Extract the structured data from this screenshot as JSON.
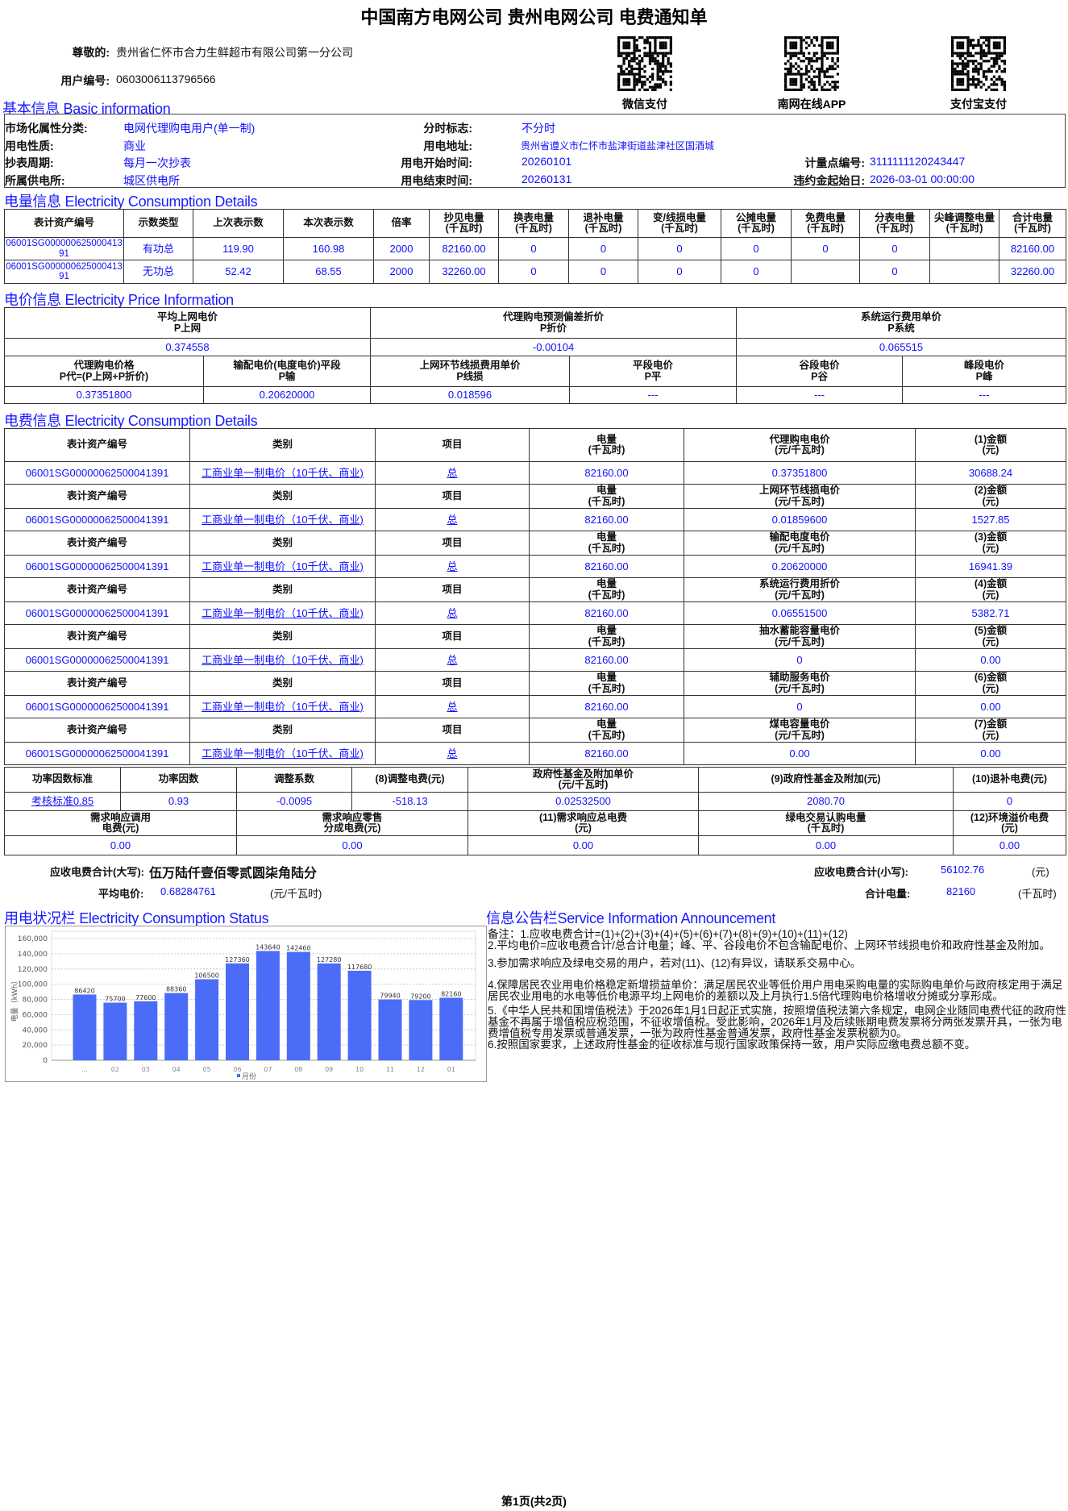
{
  "header": {
    "title": "中国南方电网公司 贵州电网公司 电费通知单",
    "greeting_label": "尊敬的:",
    "customer_name": "贵州省仁怀市合力生鲜超市有限公司第一分公司",
    "user_no_label": "用户编号:",
    "user_no": "0603006113796566",
    "qr_codes": [
      {
        "label": "微信支付",
        "icon": "qr-code-icon"
      },
      {
        "label": "南网在线APP",
        "icon": "qr-code-icon"
      },
      {
        "label": "支付宝支付",
        "icon": "qr-code-icon"
      }
    ]
  },
  "basic": {
    "title": "基本信息 Basic information",
    "market_label": "市场化属性分类:",
    "market": "电网代理购电用户(单一制)",
    "tou_label": "分时标志:",
    "tou": "不分时",
    "nature_label": "用电性质:",
    "nature": "商业",
    "address_label": "用电地址:",
    "address": "贵州省遵义市仁怀市盐津街道盐津社区国酒城",
    "cycle_label": "抄表周期:",
    "cycle": "每月一次抄表",
    "start_label": "用电开始时间:",
    "start": "20260101",
    "point_label": "计量点编号:",
    "point": "3111111120243447",
    "station_label": "所属供电所:",
    "station": "城区供电所",
    "end_label": "用电结束时间:",
    "end": "20260131",
    "penalty_label": "违约金起始日:",
    "penalty": "2026-03-01 00:00:00"
  },
  "consumption": {
    "title": "电量信息 Electricity Consumption Details",
    "headers": [
      "表计资产编号",
      "示数类型",
      "上次表示数",
      "本次表示数",
      "倍率",
      "抄见电量\n(千瓦时)",
      "换表电量\n(千瓦时)",
      "退补电量\n(千瓦时)",
      "变/线损电量\n(千瓦时)",
      "公摊电量\n(千瓦时)",
      "免费电量\n(千瓦时)",
      "分表电量\n(千瓦时)",
      "尖峰调整电量\n(千瓦时)",
      "合计电量\n(千瓦时)"
    ],
    "rows": [
      [
        "06001SG00000062500041391",
        "有功总",
        "119.90",
        "160.98",
        "2000",
        "82160.00",
        "0",
        "0",
        "0",
        "0",
        "0",
        "0",
        "",
        "82160.00"
      ],
      [
        "06001SG00000062500041391",
        "无功总",
        "52.42",
        "68.55",
        "2000",
        "32260.00",
        "0",
        "0",
        "0",
        "0",
        "",
        "0",
        "",
        "32260.00"
      ]
    ]
  },
  "price": {
    "title": "电价信息 Electricity Price Information",
    "row1_headers": [
      "平均上网电价\nP上网",
      "代理购电预测偏差折价\nP折价",
      "系统运行费用单价\nP系统"
    ],
    "row1_values": [
      "0.374558",
      "-0.00104",
      "0.065515"
    ],
    "row2_headers": [
      "代理购电价格\nP代=(P上网+P折价)",
      "输配电价(电度电价)平段\nP输",
      "上网环节线损费用单价\nP线损",
      "平段电价\nP平",
      "谷段电价\nP谷",
      "峰段电价\nP峰"
    ],
    "row2_values": [
      "0.37351800",
      "0.20620000",
      "0.018596",
      "---",
      "---",
      "---"
    ]
  },
  "fees": {
    "title": "电费信息 Electricity Consumption Details",
    "blocks": [
      {
        "headers": [
          "表计资产编号",
          "类别",
          "项目",
          "电量\n(千瓦时)",
          "代理购电电价\n(元/千瓦时)",
          "(1)金额\n(元)"
        ],
        "values": [
          "06001SG00000062500041391",
          "工商业单一制电价（10千伏、商业)",
          "总",
          "82160.00",
          "0.37351800",
          "30688.24"
        ]
      },
      {
        "headers": [
          "表计资产编号",
          "类别",
          "项目",
          "电量\n(千瓦时)",
          "上网环节线损电价\n(元/千瓦时)",
          "(2)金额\n(元)"
        ],
        "values": [
          "06001SG00000062500041391",
          "工商业单一制电价（10千伏、商业)",
          "总",
          "82160.00",
          "0.01859600",
          "1527.85"
        ]
      },
      {
        "headers": [
          "表计资产编号",
          "类别",
          "项目",
          "电量\n(千瓦时)",
          "输配电度电价\n(元/千瓦时)",
          "(3)金额\n(元)"
        ],
        "values": [
          "06001SG00000062500041391",
          "工商业单一制电价（10千伏、商业)",
          "总",
          "82160.00",
          "0.20620000",
          "16941.39"
        ]
      },
      {
        "headers": [
          "表计资产编号",
          "类别",
          "项目",
          "电量\n(千瓦时)",
          "系统运行费用折价\n(元/千瓦时)",
          "(4)金额\n(元)"
        ],
        "values": [
          "06001SG00000062500041391",
          "工商业单一制电价（10千伏、商业)",
          "总",
          "82160.00",
          "0.06551500",
          "5382.71"
        ]
      },
      {
        "headers": [
          "表计资产编号",
          "类别",
          "项目",
          "电量\n(千瓦时)",
          "抽水蓄能容量电价\n(元/千瓦时)",
          "(5)金额\n(元)"
        ],
        "values": [
          "06001SG00000062500041391",
          "工商业单一制电价（10千伏、商业)",
          "总",
          "82160.00",
          "0",
          "0.00"
        ]
      },
      {
        "headers": [
          "表计资产编号",
          "类别",
          "项目",
          "电量\n(千瓦时)",
          "辅助服务电价\n(元/千瓦时)",
          "(6)金额\n(元)"
        ],
        "values": [
          "06001SG00000062500041391",
          "工商业单一制电价（10千伏、商业)",
          "总",
          "82160.00",
          "0",
          "0.00"
        ]
      },
      {
        "headers": [
          "表计资产编号",
          "类别",
          "项目",
          "电量\n(千瓦时)",
          "煤电容量电价\n(元/千瓦时)",
          "(7)金额\n(元)"
        ],
        "values": [
          "06001SG00000062500041391",
          "工商业单一制电价（10千伏、商业)",
          "总",
          "82160.00",
          "0.00",
          "0.00"
        ]
      }
    ]
  },
  "fees2": {
    "row1_headers": [
      "功率因数标准",
      "功率因数",
      "调整系数",
      "(8)调整电费(元)",
      "政府性基金及附加单价\n(元/千瓦时)",
      "(9)政府性基金及附加(元)",
      "(10)退补电费(元)"
    ],
    "row1_values": [
      "考核标准0.85",
      "0.93",
      "-0.0095",
      "-518.13",
      "0.02532500",
      "2080.70",
      "0"
    ],
    "row2_headers": [
      "需求响应调用\n电费(元)",
      "需求响应零售\n分成电费(元)",
      "(11)需求响应总电费\n(元)",
      "绿电交易认购电量\n(千瓦时)",
      "(12)环境溢价电费\n(元)"
    ],
    "row2_values": [
      "0.00",
      "0.00",
      "0.00",
      "0.00",
      "0.00"
    ]
  },
  "totals": {
    "upper_label": "应收电费合计(大写):",
    "upper": "伍万陆仟壹佰零贰圆柒角陆分",
    "lower_label": "应收电费合计(小写):",
    "lower": "56102.76",
    "lower_unit": "(元)",
    "avg_label": "平均电价:",
    "avg": "0.68284761",
    "avg_unit": "(元/千瓦时)",
    "kwh_label": "合计电量:",
    "kwh": "82160",
    "kwh_unit": "(千瓦时)"
  },
  "status": {
    "title": "用电状况栏 Electricity Consumption Status"
  },
  "chart_data": {
    "type": "bar",
    "categories": [
      "...",
      "02",
      "03",
      "04",
      "05",
      "06",
      "07",
      "08",
      "09",
      "10",
      "11",
      "12",
      "01"
    ],
    "values": [
      86420,
      75700,
      77600,
      88360,
      106500,
      127360,
      143640,
      142460,
      127280,
      117680,
      79940,
      79200,
      82160
    ],
    "ylabel": "电量（kWh）",
    "legend": "月份",
    "legend_position": "bottom",
    "ylim": [
      0,
      160000
    ],
    "yticks": [
      "0",
      "20,000",
      "40,000",
      "60,000",
      "80,000",
      "100,000",
      "120,000",
      "140,000",
      "160,000"
    ],
    "grid": true,
    "bar_color": "#4a6cf7"
  },
  "announcement": {
    "title": "信息公告栏Service Information Announcement",
    "lines": [
      "备注：1.应收电费合计=(1)+(2)+(3)+(4)+(5)+(6)+(7)+(8)+(9)+(10)+(11)+(12)",
      "2.平均电价=应收电费合计/总合计电量；峰、平、谷段电价不包含输配电价、上网环节线损电价和政府性基金及附加。",
      "3.参加需求响应及绿电交易的用户，若对(11)、(12)有异议，请联系交易中心。",
      "4.保障居民农业用电价格稳定新增损益单价：满足居民农业等低价用户用电采购电量的实际购电单价与政府核定用于满足居民农业用电的水电等低价电源平均上网电价的差额以及上月执行1.5倍代理购电价格增收分摊或分享形成。",
      "5.《中华人民共和国增值税法》于2026年1月1日起正式实施，按照增值税法第六条规定，电网企业随同电费代征的政府性基金不再属于增值税应税范围，不征收增值税。受此影响，2026年1月及后续账期电费发票将分两张发票开具，一张为电费增值税专用发票或普通发票，一张为政府性基金普通发票，政府性基金发票税额为0。",
      "6.按照国家要求，上述政府性基金的征收标准与现行国家政策保持一致，用户实际应缴电费总额不变。"
    ]
  },
  "footer": {
    "page": "第1页(共2页)"
  },
  "colors": {
    "value_blue": "#1010ff",
    "section_blue": "#1a1aff"
  }
}
